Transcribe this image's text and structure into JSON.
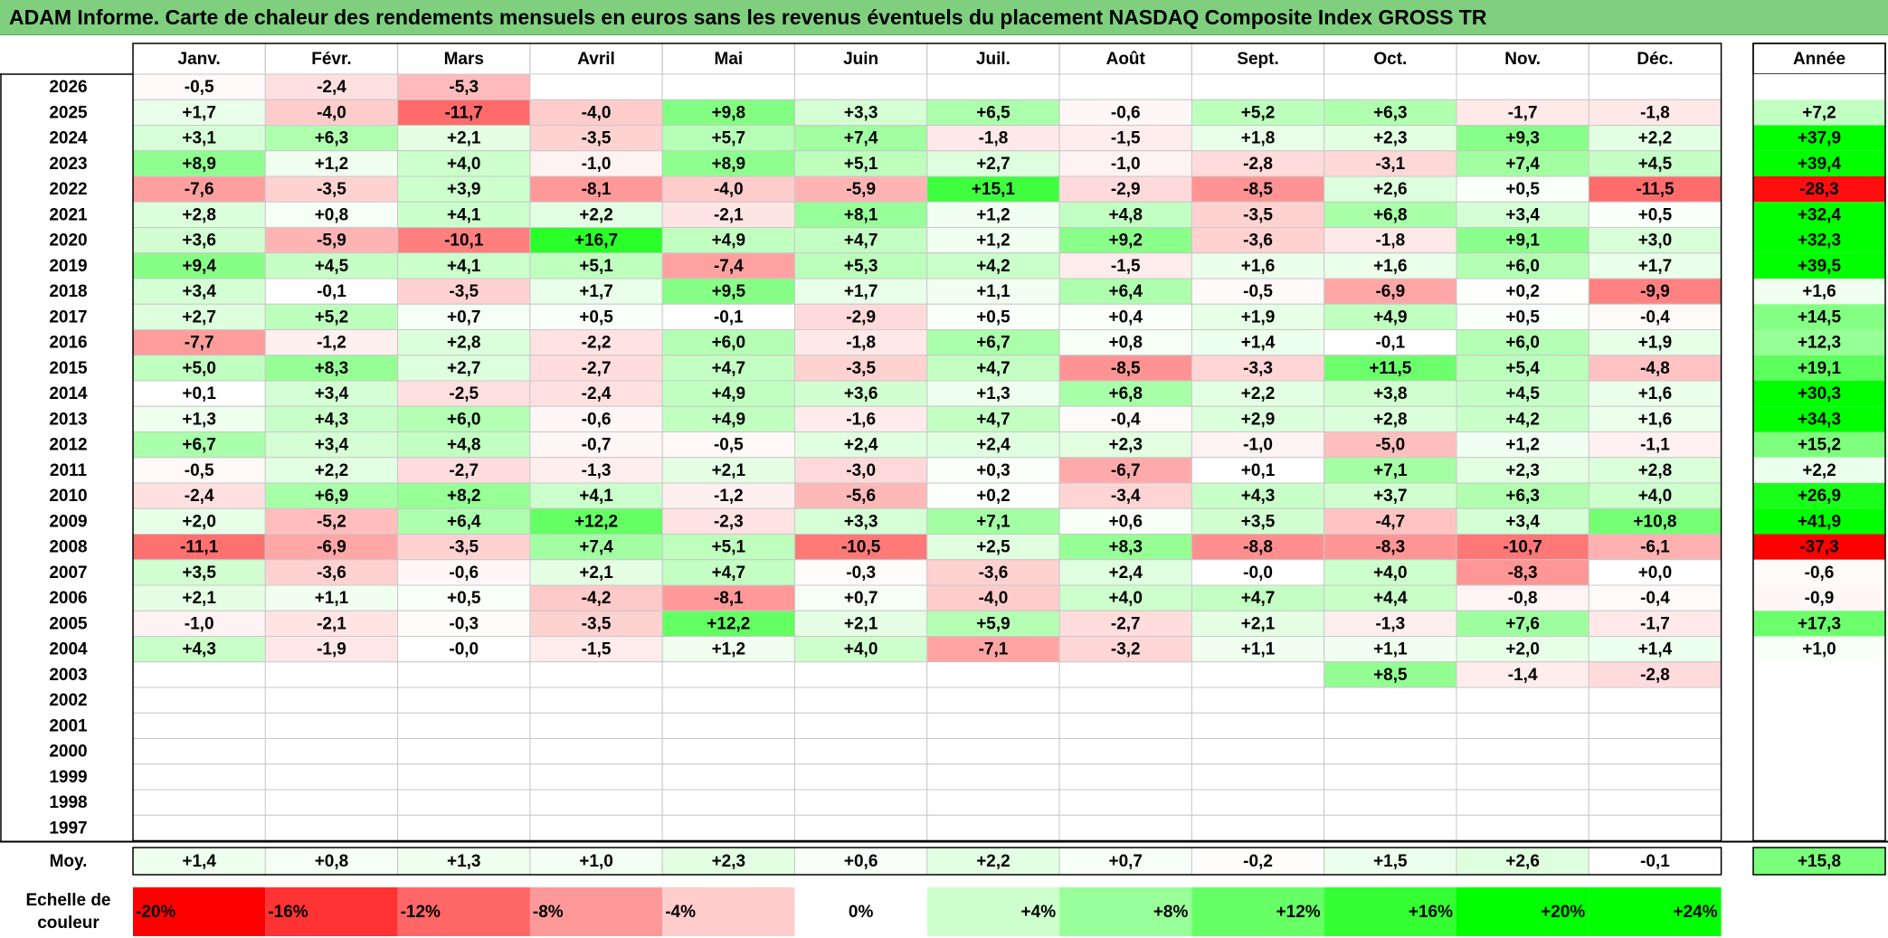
{
  "header": {
    "title": "ADAM Informe. Carte de chaleur des rendements mensuels en euros sans les revenus éventuels du placement NASDAQ Composite Index GROSS TR"
  },
  "chart_data": {
    "type": "heatmap",
    "title": "ADAM Informe. Carte de chaleur des rendements mensuels en euros sans les revenus éventuels du placement NASDAQ Composite Index GROSS TR",
    "months": [
      "Janv.",
      "Févr.",
      "Mars",
      "Avril",
      "Mai",
      "Juin",
      "Juil.",
      "Août",
      "Sept.",
      "Oct.",
      "Nov.",
      "Déc."
    ],
    "year_header": "Année",
    "rows": [
      {
        "year": "2026",
        "values": [
          "-0,5",
          "-2,4",
          "-5,3",
          "",
          "",
          "",
          "",
          "",
          "",
          "",
          "",
          ""
        ],
        "annual": ""
      },
      {
        "year": "2025",
        "values": [
          "+1,7",
          "-4,0",
          "-11,7",
          "-4,0",
          "+9,8",
          "+3,3",
          "+6,5",
          "-0,6",
          "+5,2",
          "+6,3",
          "-1,7",
          "-1,8"
        ],
        "annual": "+7,2"
      },
      {
        "year": "2024",
        "values": [
          "+3,1",
          "+6,3",
          "+2,1",
          "-3,5",
          "+5,7",
          "+7,4",
          "-1,8",
          "-1,5",
          "+1,8",
          "+2,3",
          "+9,3",
          "+2,2"
        ],
        "annual": "+37,9"
      },
      {
        "year": "2023",
        "values": [
          "+8,9",
          "+1,2",
          "+4,0",
          "-1,0",
          "+8,9",
          "+5,1",
          "+2,7",
          "-1,0",
          "-2,8",
          "-3,1",
          "+7,4",
          "+4,5"
        ],
        "annual": "+39,4"
      },
      {
        "year": "2022",
        "values": [
          "-7,6",
          "-3,5",
          "+3,9",
          "-8,1",
          "-4,0",
          "-5,9",
          "+15,1",
          "-2,9",
          "-8,5",
          "+2,6",
          "+0,5",
          "-11,5"
        ],
        "annual": "-28,3"
      },
      {
        "year": "2021",
        "values": [
          "+2,8",
          "+0,8",
          "+4,1",
          "+2,2",
          "-2,1",
          "+8,1",
          "+1,2",
          "+4,8",
          "-3,5",
          "+6,8",
          "+3,4",
          "+0,5"
        ],
        "annual": "+32,4"
      },
      {
        "year": "2020",
        "values": [
          "+3,6",
          "-5,9",
          "-10,1",
          "+16,7",
          "+4,9",
          "+4,7",
          "+1,2",
          "+9,2",
          "-3,6",
          "-1,8",
          "+9,1",
          "+3,0"
        ],
        "annual": "+32,3"
      },
      {
        "year": "2019",
        "values": [
          "+9,4",
          "+4,5",
          "+4,1",
          "+5,1",
          "-7,4",
          "+5,3",
          "+4,2",
          "-1,5",
          "+1,6",
          "+1,6",
          "+6,0",
          "+1,7"
        ],
        "annual": "+39,5"
      },
      {
        "year": "2018",
        "values": [
          "+3,4",
          "-0,1",
          "-3,5",
          "+1,7",
          "+9,5",
          "+1,7",
          "+1,1",
          "+6,4",
          "-0,5",
          "-6,9",
          "+0,2",
          "-9,9"
        ],
        "annual": "+1,6"
      },
      {
        "year": "2017",
        "values": [
          "+2,7",
          "+5,2",
          "+0,7",
          "+0,5",
          "-0,1",
          "-2,9",
          "+0,5",
          "+0,4",
          "+1,9",
          "+4,9",
          "+0,5",
          "-0,4"
        ],
        "annual": "+14,5"
      },
      {
        "year": "2016",
        "values": [
          "-7,7",
          "-1,2",
          "+2,8",
          "-2,2",
          "+6,0",
          "-1,8",
          "+6,7",
          "+0,8",
          "+1,4",
          "-0,1",
          "+6,0",
          "+1,9"
        ],
        "annual": "+12,3"
      },
      {
        "year": "2015",
        "values": [
          "+5,0",
          "+8,3",
          "+2,7",
          "-2,7",
          "+4,7",
          "-3,5",
          "+4,7",
          "-8,5",
          "-3,3",
          "+11,5",
          "+5,4",
          "-4,8"
        ],
        "annual": "+19,1"
      },
      {
        "year": "2014",
        "values": [
          "+0,1",
          "+3,4",
          "-2,5",
          "-2,4",
          "+4,9",
          "+3,6",
          "+1,3",
          "+6,8",
          "+2,2",
          "+3,8",
          "+4,5",
          "+1,6"
        ],
        "annual": "+30,3"
      },
      {
        "year": "2013",
        "values": [
          "+1,3",
          "+4,3",
          "+6,0",
          "-0,6",
          "+4,9",
          "-1,6",
          "+4,7",
          "-0,4",
          "+2,9",
          "+2,8",
          "+4,2",
          "+1,6"
        ],
        "annual": "+34,3"
      },
      {
        "year": "2012",
        "values": [
          "+6,7",
          "+3,4",
          "+4,8",
          "-0,7",
          "-0,5",
          "+2,4",
          "+2,4",
          "+2,3",
          "-1,0",
          "-5,0",
          "+1,2",
          "-1,1"
        ],
        "annual": "+15,2"
      },
      {
        "year": "2011",
        "values": [
          "-0,5",
          "+2,2",
          "-2,7",
          "-1,3",
          "+2,1",
          "-3,0",
          "+0,3",
          "-6,7",
          "+0,1",
          "+7,1",
          "+2,3",
          "+2,8"
        ],
        "annual": "+2,2"
      },
      {
        "year": "2010",
        "values": [
          "-2,4",
          "+6,9",
          "+8,2",
          "+4,1",
          "-1,2",
          "-5,6",
          "+0,2",
          "-3,4",
          "+4,3",
          "+3,7",
          "+6,3",
          "+4,0"
        ],
        "annual": "+26,9"
      },
      {
        "year": "2009",
        "values": [
          "+2,0",
          "-5,2",
          "+6,4",
          "+12,2",
          "-2,3",
          "+3,3",
          "+7,1",
          "+0,6",
          "+3,5",
          "-4,7",
          "+3,4",
          "+10,8"
        ],
        "annual": "+41,9"
      },
      {
        "year": "2008",
        "values": [
          "-11,1",
          "-6,9",
          "-3,5",
          "+7,4",
          "+5,1",
          "-10,5",
          "+2,5",
          "+8,3",
          "-8,8",
          "-8,3",
          "-10,7",
          "-6,1"
        ],
        "annual": "-37,3"
      },
      {
        "year": "2007",
        "values": [
          "+3,5",
          "-3,6",
          "-0,6",
          "+2,1",
          "+4,7",
          "-0,3",
          "-3,6",
          "+2,4",
          "-0,0",
          "+4,0",
          "-8,3",
          "+0,0"
        ],
        "annual": "-0,6"
      },
      {
        "year": "2006",
        "values": [
          "+2,1",
          "+1,1",
          "+0,5",
          "-4,2",
          "-8,1",
          "+0,7",
          "-4,0",
          "+4,0",
          "+4,7",
          "+4,4",
          "-0,8",
          "-0,4"
        ],
        "annual": "-0,9"
      },
      {
        "year": "2005",
        "values": [
          "-1,0",
          "-2,1",
          "-0,3",
          "-3,5",
          "+12,2",
          "+2,1",
          "+5,9",
          "-2,7",
          "+2,1",
          "-1,3",
          "+7,6",
          "-1,7"
        ],
        "annual": "+17,3"
      },
      {
        "year": "2004",
        "values": [
          "+4,3",
          "-1,9",
          "-0,0",
          "-1,5",
          "+1,2",
          "+4,0",
          "-7,1",
          "-3,2",
          "+1,1",
          "+1,1",
          "+2,0",
          "+1,4"
        ],
        "annual": "+1,0"
      },
      {
        "year": "2003",
        "values": [
          "",
          "",
          "",
          "",
          "",
          "",
          "",
          "",
          "",
          "+8,5",
          "-1,4",
          "-2,8"
        ],
        "annual": ""
      },
      {
        "year": "2002",
        "values": [
          "",
          "",
          "",
          "",
          "",
          "",
          "",
          "",
          "",
          "",
          "",
          ""
        ],
        "annual": ""
      },
      {
        "year": "2001",
        "values": [
          "",
          "",
          "",
          "",
          "",
          "",
          "",
          "",
          "",
          "",
          "",
          ""
        ],
        "annual": ""
      },
      {
        "year": "2000",
        "values": [
          "",
          "",
          "",
          "",
          "",
          "",
          "",
          "",
          "",
          "",
          "",
          ""
        ],
        "annual": ""
      },
      {
        "year": "1999",
        "values": [
          "",
          "",
          "",
          "",
          "",
          "",
          "",
          "",
          "",
          "",
          "",
          ""
        ],
        "annual": ""
      },
      {
        "year": "1998",
        "values": [
          "",
          "",
          "",
          "",
          "",
          "",
          "",
          "",
          "",
          "",
          "",
          ""
        ],
        "annual": ""
      },
      {
        "year": "1997",
        "values": [
          "",
          "",
          "",
          "",
          "",
          "",
          "",
          "",
          "",
          "",
          "",
          ""
        ],
        "annual": ""
      }
    ],
    "average": {
      "label": "Moy.",
      "values": [
        "+1,4",
        "+0,8",
        "+1,3",
        "+1,0",
        "+2,3",
        "+0,6",
        "+2,2",
        "+0,7",
        "-0,2",
        "+1,5",
        "+2,6",
        "-0,1"
      ],
      "annual": "+15,8"
    },
    "color_scale": {
      "label_line1": "Echelle de",
      "label_line2": "couleur",
      "stops": [
        {
          "label": "-20%",
          "value": -20
        },
        {
          "label": "-16%",
          "value": -16
        },
        {
          "label": "-12%",
          "value": -12
        },
        {
          "label": "-8%",
          "value": -8
        },
        {
          "label": "-4%",
          "value": -4
        },
        {
          "label": "0%",
          "value": 0
        },
        {
          "label": "+4%",
          "value": 4
        },
        {
          "label": "+8%",
          "value": 8
        },
        {
          "label": "+12%",
          "value": 12
        },
        {
          "label": "+16%",
          "value": 16
        },
        {
          "label": "+20%",
          "value": 20
        },
        {
          "label": "+24%",
          "value": 24
        }
      ]
    },
    "colors": {
      "title_bar": "#7fcf7f",
      "negative_max": "#ff0000",
      "positive_max": "#00ff00",
      "neutral": "#ffffff"
    }
  }
}
